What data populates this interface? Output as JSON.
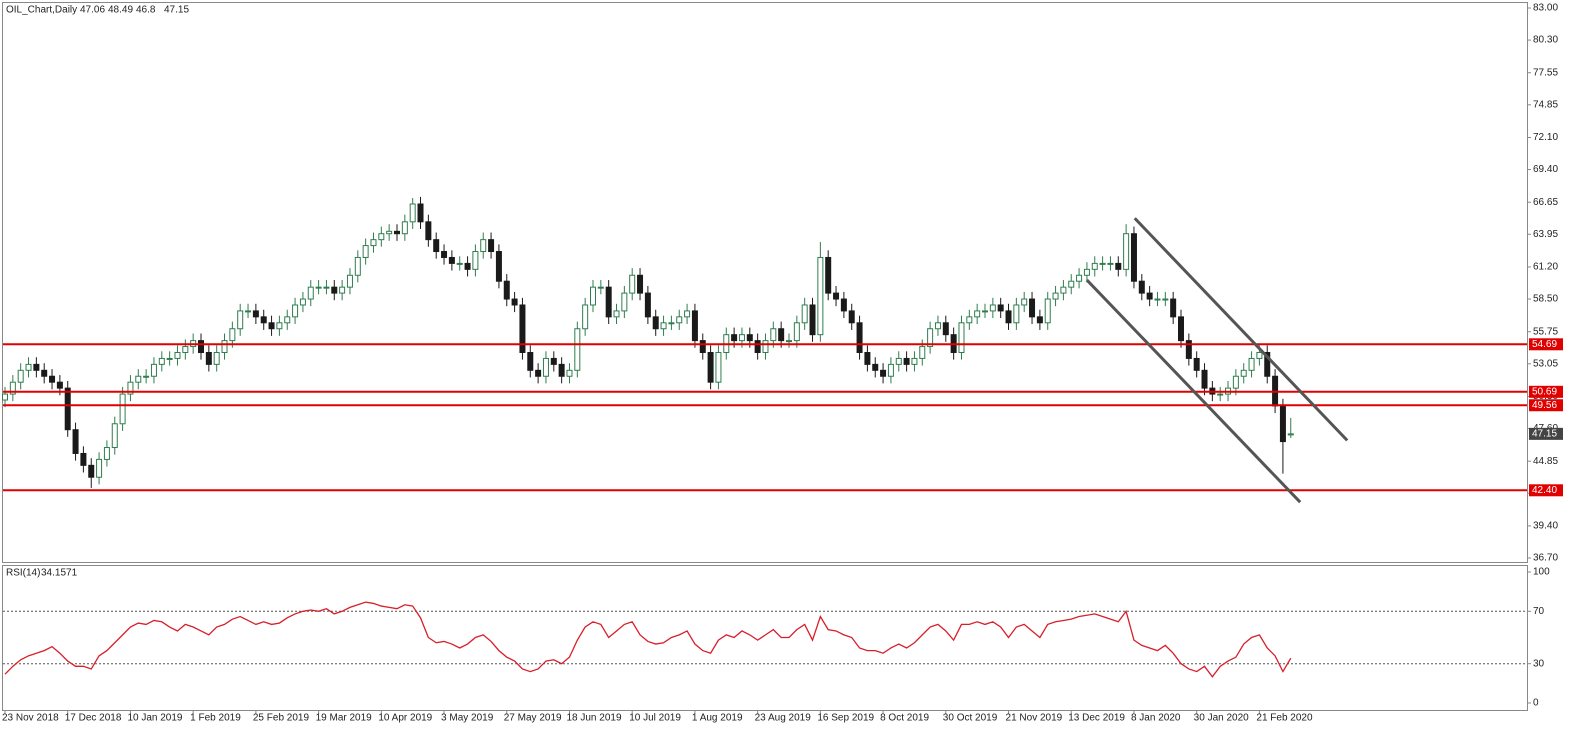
{
  "chart_data": [
    {
      "type": "candlestick",
      "title": "OIL_Chart,Daily",
      "categories": [
        "23 Nov 2018",
        null,
        null,
        null,
        null,
        null,
        null,
        null,
        "17 Dec 2018",
        null,
        null,
        null,
        null,
        null,
        null,
        null,
        "10 Jan 2019",
        null,
        null,
        null,
        null,
        null,
        null,
        null,
        "1 Feb 2019",
        null,
        null,
        null,
        null,
        null,
        null,
        null,
        "25 Feb 2019",
        null,
        null,
        null,
        null,
        null,
        null,
        null,
        "19 Mar 2019",
        null,
        null,
        null,
        null,
        null,
        null,
        null,
        "10 Apr 2019",
        null,
        null,
        null,
        null,
        null,
        null,
        null,
        "3 May 2019",
        null,
        null,
        null,
        null,
        null,
        null,
        null,
        "27 May 2019",
        null,
        null,
        null,
        null,
        null,
        null,
        null,
        "18 Jun 2019",
        null,
        null,
        null,
        null,
        null,
        null,
        null,
        "10 Jul 2019",
        null,
        null,
        null,
        null,
        null,
        null,
        null,
        "1 Aug 2019",
        null,
        null,
        null,
        null,
        null,
        null,
        null,
        "23 Aug 2019",
        null,
        null,
        null,
        null,
        null,
        null,
        null,
        "16 Sep 2019",
        null,
        null,
        null,
        null,
        null,
        null,
        null,
        "8 Oct 2019",
        null,
        null,
        null,
        null,
        null,
        null,
        null,
        "30 Oct 2019",
        null,
        null,
        null,
        null,
        null,
        null,
        null,
        "21 Nov 2019",
        null,
        null,
        null,
        null,
        null,
        null,
        null,
        "13 Dec 2019",
        null,
        null,
        null,
        null,
        null,
        null,
        null,
        "8 Jan 2020",
        null,
        null,
        null,
        null,
        null,
        null,
        null,
        "30 Jan 2020",
        null,
        null,
        null,
        null,
        null,
        null,
        null,
        "21 Feb 2020",
        null,
        null,
        null,
        null
      ],
      "series": {
        "open": [
          50,
          50.5,
          51.5,
          52.5,
          53,
          52.5,
          52,
          51.5,
          51,
          47.5,
          45.5,
          44.5,
          43.5,
          45,
          46,
          48,
          50.5,
          51.5,
          52,
          52,
          53,
          53.5,
          53.5,
          54,
          54.5,
          55,
          54,
          53,
          54,
          55,
          56,
          57.5,
          57.5,
          57,
          56.5,
          56,
          56.5,
          57,
          58,
          58.5,
          59.5,
          59.5,
          59.5,
          59,
          59.5,
          60.5,
          62,
          63,
          63.5,
          64,
          64.2,
          64,
          65,
          66.5,
          65,
          63.5,
          62.5,
          62,
          61.5,
          61.5,
          61,
          62.5,
          63.5,
          62.5,
          60,
          58.5,
          58,
          54,
          52.5,
          52,
          53.5,
          53,
          52,
          52.5,
          56,
          58,
          59.5,
          59.5,
          57,
          57.5,
          59,
          60.5,
          59,
          57,
          56,
          56.5,
          56.5,
          57,
          57.5,
          55,
          54,
          51.5,
          54,
          55.5,
          55,
          55.5,
          55,
          54,
          55,
          56,
          55,
          55,
          56.5,
          58,
          55.5,
          62,
          59,
          58.5,
          57.5,
          56.5,
          54,
          53,
          52.5,
          52,
          53,
          53.5,
          53,
          53.5,
          54.5,
          56,
          56.5,
          55.5,
          54,
          56.5,
          57,
          57.5,
          57.5,
          58,
          57.5,
          56.5,
          58,
          58.5,
          57,
          56.5,
          58.5,
          59,
          59.5,
          60,
          60.5,
          61,
          61.5,
          61.5,
          61.5,
          61,
          64,
          60,
          59,
          58.5,
          58.5,
          58.5,
          57,
          55,
          53.5,
          52.5,
          51,
          50.5,
          50.5,
          51,
          52,
          52.5,
          53.5,
          54,
          52,
          49.5,
          47.06
        ],
        "high": [
          51.1,
          52.1,
          53.1,
          53.6,
          53.6,
          53.1,
          52.6,
          52.1,
          51.6,
          48.1,
          46.1,
          45.1,
          45.6,
          46.6,
          48.6,
          51.1,
          52.1,
          52.6,
          52.6,
          53.6,
          54.1,
          54.1,
          54.6,
          55.1,
          55.6,
          55.6,
          54.6,
          54.6,
          55.6,
          56.6,
          58.1,
          58.1,
          58.1,
          57.6,
          57.1,
          57.1,
          57.6,
          58.6,
          59.1,
          60.1,
          60.1,
          60.1,
          60.1,
          60.1,
          61.1,
          62.6,
          63.6,
          64.1,
          64.6,
          64.8,
          64.8,
          65.6,
          67,
          67.1,
          65.6,
          64.1,
          63.1,
          62.6,
          62.1,
          62.1,
          63.1,
          64.1,
          64.1,
          63.1,
          60.6,
          59.1,
          58.6,
          54.6,
          53.1,
          54.1,
          54.1,
          53.6,
          53.1,
          56.6,
          58.6,
          60.1,
          60.1,
          60.1,
          58.1,
          59.6,
          61.1,
          61.1,
          59.6,
          57.6,
          57.1,
          57.1,
          57.6,
          58.1,
          58.1,
          55.6,
          54.6,
          54.6,
          56.1,
          56.1,
          56.1,
          56.1,
          55.6,
          55.6,
          56.6,
          56.6,
          55.6,
          57.1,
          58.6,
          58.6,
          63.3,
          62.6,
          59.6,
          59.1,
          58.1,
          57.1,
          54.6,
          53.6,
          53.1,
          53.6,
          54.1,
          54.1,
          54.1,
          55.1,
          56.6,
          57.1,
          57.1,
          56.1,
          57.1,
          57.6,
          58.1,
          58.1,
          58.6,
          58.6,
          58.1,
          58.6,
          59.1,
          59.1,
          57.6,
          59.1,
          59.6,
          60.1,
          60.6,
          61.1,
          61.6,
          62.1,
          62.1,
          62.1,
          62.1,
          64.8,
          64.6,
          60.6,
          59.6,
          59.1,
          59.1,
          59.1,
          57.6,
          55.6,
          54.1,
          53.1,
          51.6,
          51.1,
          51.6,
          52.6,
          53.1,
          54.1,
          54.6,
          54.6,
          52.6,
          50.1,
          48.49
        ],
        "low": [
          49.4,
          49.9,
          50.9,
          51.9,
          51.9,
          51.4,
          50.9,
          50.4,
          46.9,
          44.9,
          43.9,
          42.6,
          42.9,
          44.4,
          45.4,
          47.4,
          49.9,
          50.9,
          51.4,
          51.4,
          52.4,
          52.9,
          52.9,
          53.4,
          53.9,
          53.4,
          52.4,
          52.4,
          53.4,
          54.4,
          55.4,
          56.9,
          56.4,
          55.9,
          55.4,
          55.4,
          55.9,
          56.4,
          57.4,
          57.9,
          58.9,
          58.9,
          58.4,
          58.4,
          58.9,
          59.9,
          61.4,
          62.4,
          62.9,
          63.4,
          63.4,
          63.4,
          64.4,
          64.4,
          62.9,
          61.9,
          61.4,
          60.9,
          60.9,
          60.4,
          60.4,
          61.9,
          61.9,
          59.4,
          57.9,
          57.4,
          53.4,
          51.9,
          51.4,
          51.4,
          52.4,
          51.4,
          51.4,
          51.9,
          55.4,
          57.4,
          58.9,
          56.4,
          56.4,
          56.9,
          58.4,
          58.4,
          56.4,
          55.4,
          55.4,
          55.9,
          55.9,
          56.4,
          54.4,
          53.4,
          50.9,
          50.9,
          53.4,
          54.4,
          54.4,
          54.4,
          53.4,
          53.4,
          54.4,
          54.4,
          54.4,
          54.4,
          55.9,
          54.9,
          54.9,
          58.4,
          57.9,
          56.9,
          55.9,
          53.4,
          52.4,
          51.9,
          51.4,
          51.4,
          52.4,
          52.4,
          52.4,
          52.9,
          53.9,
          55.4,
          54.9,
          53.4,
          53.4,
          55.9,
          56.4,
          56.9,
          56.9,
          56.9,
          55.9,
          55.9,
          57.4,
          56.4,
          55.9,
          55.9,
          57.9,
          58.4,
          58.9,
          59.4,
          59.9,
          60.4,
          60.9,
          60.9,
          60.4,
          60.4,
          59.4,
          58.4,
          57.9,
          57.9,
          57.9,
          56.4,
          54.4,
          52.9,
          51.9,
          50.4,
          49.9,
          49.9,
          49.9,
          50.4,
          51.4,
          51.9,
          52.9,
          51.4,
          48.9,
          43.8,
          46.8
        ],
        "close": [
          50.5,
          51.5,
          52.5,
          53,
          52.5,
          52,
          51.5,
          51,
          47.5,
          45.5,
          44.5,
          43.5,
          45,
          46,
          48,
          50.5,
          51.5,
          52,
          52,
          53,
          53.5,
          53.5,
          54,
          54.5,
          55,
          54,
          53,
          54,
          55,
          56,
          57.5,
          57.5,
          57,
          56.5,
          56,
          56.5,
          57,
          58,
          58.5,
          59.5,
          59.5,
          59.5,
          59,
          59.5,
          60.5,
          62,
          63,
          63.5,
          64,
          64.2,
          64,
          65,
          66.5,
          65,
          63.5,
          62.5,
          62,
          61.5,
          61.5,
          61,
          62.5,
          63.5,
          62.5,
          60,
          58.5,
          58,
          54,
          52.5,
          52,
          53.5,
          53,
          52,
          52.5,
          56,
          58,
          59.5,
          59.5,
          57,
          57.5,
          59,
          60.5,
          59,
          57,
          56,
          56.5,
          56.5,
          57,
          57.5,
          55,
          54,
          51.5,
          54,
          55.5,
          55,
          55.5,
          55,
          54,
          55,
          56,
          55,
          55,
          56.5,
          58,
          55.5,
          62,
          59,
          58.5,
          57.5,
          56.5,
          54,
          53,
          52.5,
          52,
          53,
          53.5,
          53,
          53.5,
          54.5,
          56,
          56.5,
          55.5,
          54,
          56.5,
          57,
          57.5,
          57.5,
          58,
          57.5,
          56.5,
          58,
          58.5,
          57,
          56.5,
          58.5,
          59,
          59.5,
          60,
          60.5,
          61,
          61.5,
          61.5,
          61.5,
          61,
          64,
          60,
          59,
          58.5,
          58.5,
          58.5,
          57,
          55,
          53.5,
          52.5,
          51,
          50.5,
          50.5,
          51,
          52,
          52.5,
          53.5,
          54,
          52,
          49.5,
          46.5,
          47.15
        ]
      },
      "up_color": "#2f7d4f",
      "down_color": "#1a1a1a",
      "ylim": [
        36.7,
        83
      ],
      "yticks": [
        {
          "value": 83,
          "label": "83.00"
        },
        {
          "value": 80.3,
          "label": "80.30"
        },
        {
          "value": 77.55,
          "label": "77.55"
        },
        {
          "value": 74.85,
          "label": "74.85"
        },
        {
          "value": 72.1,
          "label": "72.10"
        },
        {
          "value": 69.4,
          "label": "69.40"
        },
        {
          "value": 66.65,
          "label": "66.65"
        },
        {
          "value": 63.95,
          "label": "63.95"
        },
        {
          "value": 61.2,
          "label": "61.20"
        },
        {
          "value": 58.5,
          "label": "58.50"
        },
        {
          "value": 55.75,
          "label": "55.75"
        },
        {
          "value": 53.05,
          "label": "53.05"
        },
        {
          "value": 50.3,
          "label": "50.30"
        },
        {
          "value": 47.6,
          "label": "47.60"
        },
        {
          "value": 44.85,
          "label": "44.85"
        },
        {
          "value": 42.15,
          "label": "42.15"
        },
        {
          "value": 39.4,
          "label": "39.40"
        },
        {
          "value": 36.7,
          "label": "36.70"
        }
      ],
      "levels": [
        54.69,
        50.69,
        49.56,
        42.4
      ],
      "level_labels": [
        "54.69",
        "50.69",
        "49.56",
        "42.40"
      ],
      "level_color": "#e00000",
      "trendlines": [
        {
          "x": [
            144.1,
            171.2
          ],
          "y": [
            65.3,
            46.6
          ]
        },
        {
          "x": [
            138.0,
            165.2
          ],
          "y": [
            60.1,
            41.4
          ]
        }
      ],
      "trendline_color": "#555555"
    },
    {
      "type": "line",
      "series": [
        {
          "name": "RSI(14)",
          "color": "#d81e2a",
          "values": [
            22,
            28,
            33,
            36,
            38,
            40,
            43,
            38,
            32,
            28,
            28,
            26,
            36,
            40,
            46,
            52,
            58,
            61,
            60,
            63,
            62,
            58,
            55,
            60,
            58,
            55,
            52,
            58,
            60,
            64,
            66,
            63,
            60,
            62,
            60,
            61,
            65,
            68,
            70,
            71,
            70,
            72,
            68,
            70,
            73,
            75,
            77,
            76,
            74,
            73,
            72,
            75,
            74,
            65,
            50,
            46,
            47,
            45,
            42,
            45,
            50,
            52,
            47,
            40,
            35,
            32,
            26,
            24,
            26,
            32,
            33,
            30,
            35,
            48,
            58,
            62,
            60,
            50,
            55,
            60,
            62,
            52,
            47,
            45,
            46,
            50,
            52,
            55,
            45,
            40,
            38,
            48,
            52,
            50,
            55,
            52,
            48,
            52,
            56,
            50,
            50,
            56,
            60,
            48,
            66,
            56,
            55,
            52,
            50,
            42,
            40,
            40,
            38,
            42,
            45,
            42,
            46,
            52,
            58,
            60,
            55,
            48,
            60,
            60,
            62,
            60,
            62,
            58,
            50,
            58,
            60,
            55,
            50,
            60,
            62,
            63,
            64,
            66,
            67,
            68,
            66,
            64,
            62,
            70,
            48,
            44,
            42,
            40,
            44,
            38,
            30,
            26,
            24,
            28,
            20,
            28,
            32,
            35,
            45,
            50,
            52,
            42,
            36,
            24,
            34.1571
          ]
        }
      ],
      "ylim": [
        0,
        100
      ],
      "yticks": [
        0,
        30,
        70,
        100
      ],
      "reference_lines": [
        30,
        70
      ]
    }
  ]
}
